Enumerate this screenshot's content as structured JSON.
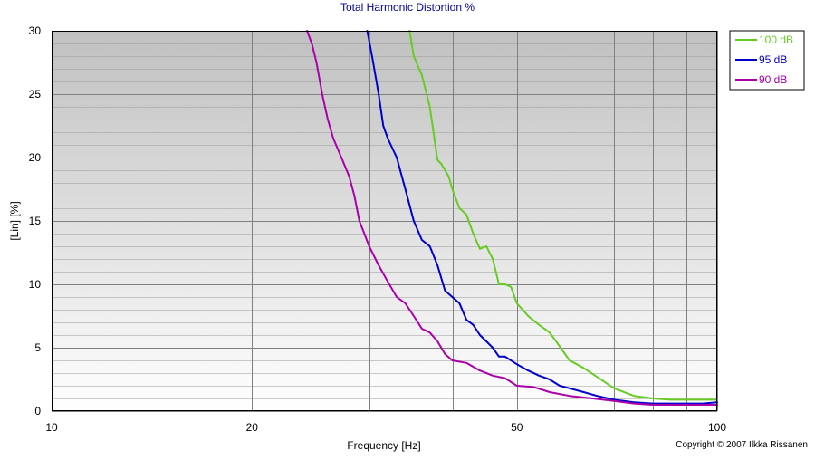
{
  "chart_data": {
    "type": "line",
    "title": "Total Harmonic Distortion %",
    "xlabel": "Frequency [Hz]",
    "ylabel": "[Lin] [%]",
    "xscale": "log",
    "xlim": [
      10,
      100
    ],
    "ylim": [
      0,
      30
    ],
    "xticks": [
      10,
      20,
      50,
      100
    ],
    "xtick_labels": [
      "10",
      "20",
      "50",
      "100"
    ],
    "yticks": [
      0,
      5,
      10,
      15,
      20,
      25,
      30
    ],
    "ytick_labels": [
      "0",
      "5",
      "10",
      "15",
      "20",
      "25",
      "30"
    ],
    "legend_position": "top-right",
    "grid": true,
    "series": [
      {
        "name": "100 dB",
        "color": "#66cc22",
        "x": [
          34.5,
          35.0,
          36.0,
          37.0,
          38.0,
          38.5,
          39.5,
          40.0,
          41.0,
          42.0,
          43.0,
          44.0,
          45.0,
          46.0,
          47.0,
          48.0,
          49.0,
          50.0,
          52.0,
          54.0,
          56.0,
          58.0,
          60.0,
          63.0,
          66.0,
          70.0,
          75.0,
          80.0,
          85.0,
          90.0,
          95.0,
          100.0
        ],
        "y": [
          30,
          28,
          26.5,
          24,
          19.8,
          19.5,
          18.5,
          17.5,
          16.0,
          15.5,
          14.0,
          12.8,
          13.0,
          12.0,
          10.0,
          10.0,
          9.8,
          8.5,
          7.5,
          6.8,
          6.2,
          5.1,
          4.0,
          3.4,
          2.7,
          1.8,
          1.2,
          1.0,
          0.9,
          0.9,
          0.9,
          0.9
        ]
      },
      {
        "name": "95 dB",
        "color": "#0000cc",
        "x": [
          29.8,
          30.3,
          31.0,
          31.5,
          32.0,
          33.0,
          34.0,
          35.0,
          36.0,
          37.0,
          38.0,
          39.0,
          40.0,
          41.0,
          42.0,
          43.0,
          44.0,
          45.0,
          46.0,
          47.0,
          48.0,
          50.0,
          52.0,
          54.0,
          56.0,
          58.0,
          60.0,
          63.0,
          66.0,
          70.0,
          75.0,
          80.0,
          85.0,
          90.0,
          95.0,
          100.0
        ],
        "y": [
          30,
          28,
          25,
          22.5,
          21.5,
          20.0,
          17.5,
          15.0,
          13.5,
          13.0,
          11.5,
          9.5,
          9.0,
          8.5,
          7.2,
          6.8,
          6.0,
          5.5,
          5.0,
          4.3,
          4.3,
          3.7,
          3.2,
          2.8,
          2.5,
          2.0,
          1.8,
          1.5,
          1.2,
          0.9,
          0.7,
          0.6,
          0.6,
          0.6,
          0.6,
          0.7
        ]
      },
      {
        "name": "90 dB",
        "color": "#aa00aa",
        "x": [
          24.2,
          24.6,
          25.0,
          25.5,
          26.0,
          26.5,
          27.0,
          27.5,
          28.0,
          28.5,
          29.0,
          29.5,
          30.0,
          31.0,
          32.0,
          33.0,
          34.0,
          35.0,
          36.0,
          37.0,
          38.0,
          39.0,
          40.0,
          42.0,
          44.0,
          46.0,
          48.0,
          50.0,
          53.0,
          56.0,
          60.0,
          65.0,
          70.0,
          75.0,
          80.0,
          85.0,
          90.0,
          95.0,
          100.0
        ],
        "y": [
          30,
          29,
          27.5,
          25.0,
          23.0,
          21.5,
          20.5,
          19.5,
          18.5,
          17.0,
          15.0,
          14.0,
          13.0,
          11.5,
          10.2,
          9.0,
          8.5,
          7.5,
          6.5,
          6.2,
          5.5,
          4.5,
          4.0,
          3.8,
          3.2,
          2.8,
          2.6,
          2.0,
          1.9,
          1.5,
          1.2,
          1.0,
          0.8,
          0.6,
          0.5,
          0.5,
          0.5,
          0.5,
          0.5
        ]
      }
    ],
    "copyright": "Copyright © 2007 Ilkka Rissanen"
  }
}
